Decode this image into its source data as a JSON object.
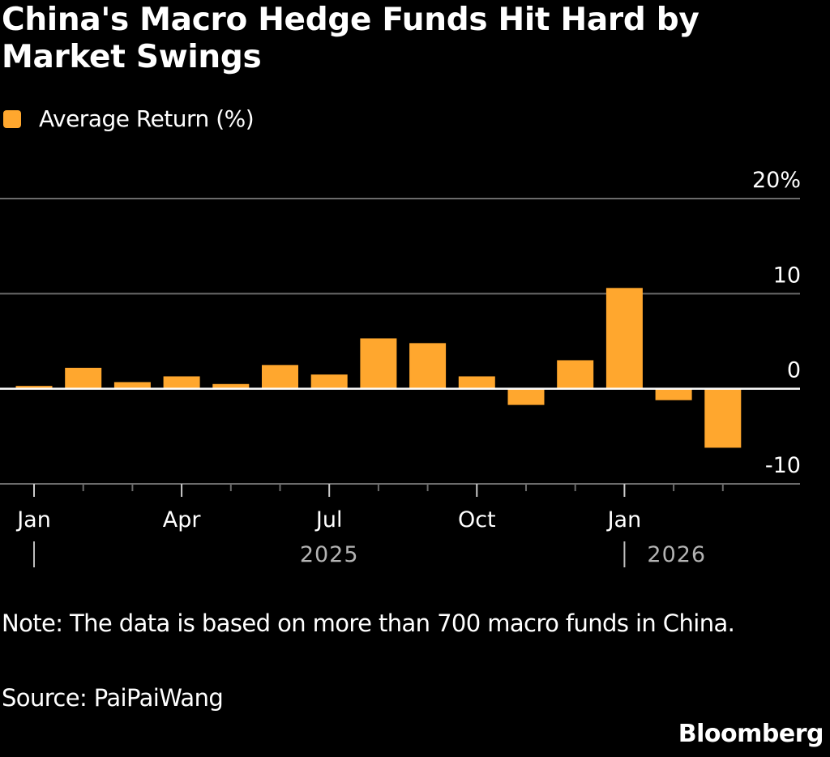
{
  "header": {
    "title": "China's Macro Hedge Funds Hit Hard by Market Swings"
  },
  "legend": {
    "label": "Average Return (%)",
    "color": "#FFA72E"
  },
  "footer": {
    "note": "Note: The data is based on more than 700 macro funds in China.",
    "source": "Source: PaiPaiWang",
    "brand": "Bloomberg"
  },
  "chart_data": {
    "type": "bar",
    "title": "China's Macro Hedge Funds Hit Hard by Market Swings",
    "xlabel": "",
    "ylabel": "",
    "series": [
      {
        "name": "Average Return (%)",
        "color": "#FFA72E",
        "values": [
          0.3,
          2.2,
          0.7,
          1.3,
          0.5,
          2.5,
          1.5,
          5.3,
          4.8,
          1.3,
          -1.7,
          3.0,
          10.6,
          -1.2,
          -6.2
        ]
      }
    ],
    "categories": [
      "Jan 2025",
      "Feb 2025",
      "Mar 2025",
      "Apr 2025",
      "May 2025",
      "Jun 2025",
      "Jul 2025",
      "Aug 2025",
      "Sep 2025",
      "Oct 2025",
      "Nov 2025",
      "Dec 2025",
      "Jan 2026",
      "Feb 2026",
      "Mar 2026"
    ],
    "ylim": [
      -10,
      20
    ],
    "yticks": [
      -10,
      0,
      10,
      20
    ],
    "ytick_labels": [
      "-10",
      "0",
      "10",
      "20%"
    ],
    "xtick_labels": [
      {
        "label": "Jan",
        "index": 0
      },
      {
        "label": "Apr",
        "index": 3
      },
      {
        "label": "Jul",
        "index": 6
      },
      {
        "label": "Oct",
        "index": 9
      },
      {
        "label": "Jan",
        "index": 12
      }
    ],
    "year_labels": [
      {
        "label": "2025",
        "start_index": 0
      },
      {
        "label": "2026",
        "start_index": 12
      }
    ],
    "grid": true,
    "legend_position": "top-left",
    "yaxis_position": "right"
  }
}
